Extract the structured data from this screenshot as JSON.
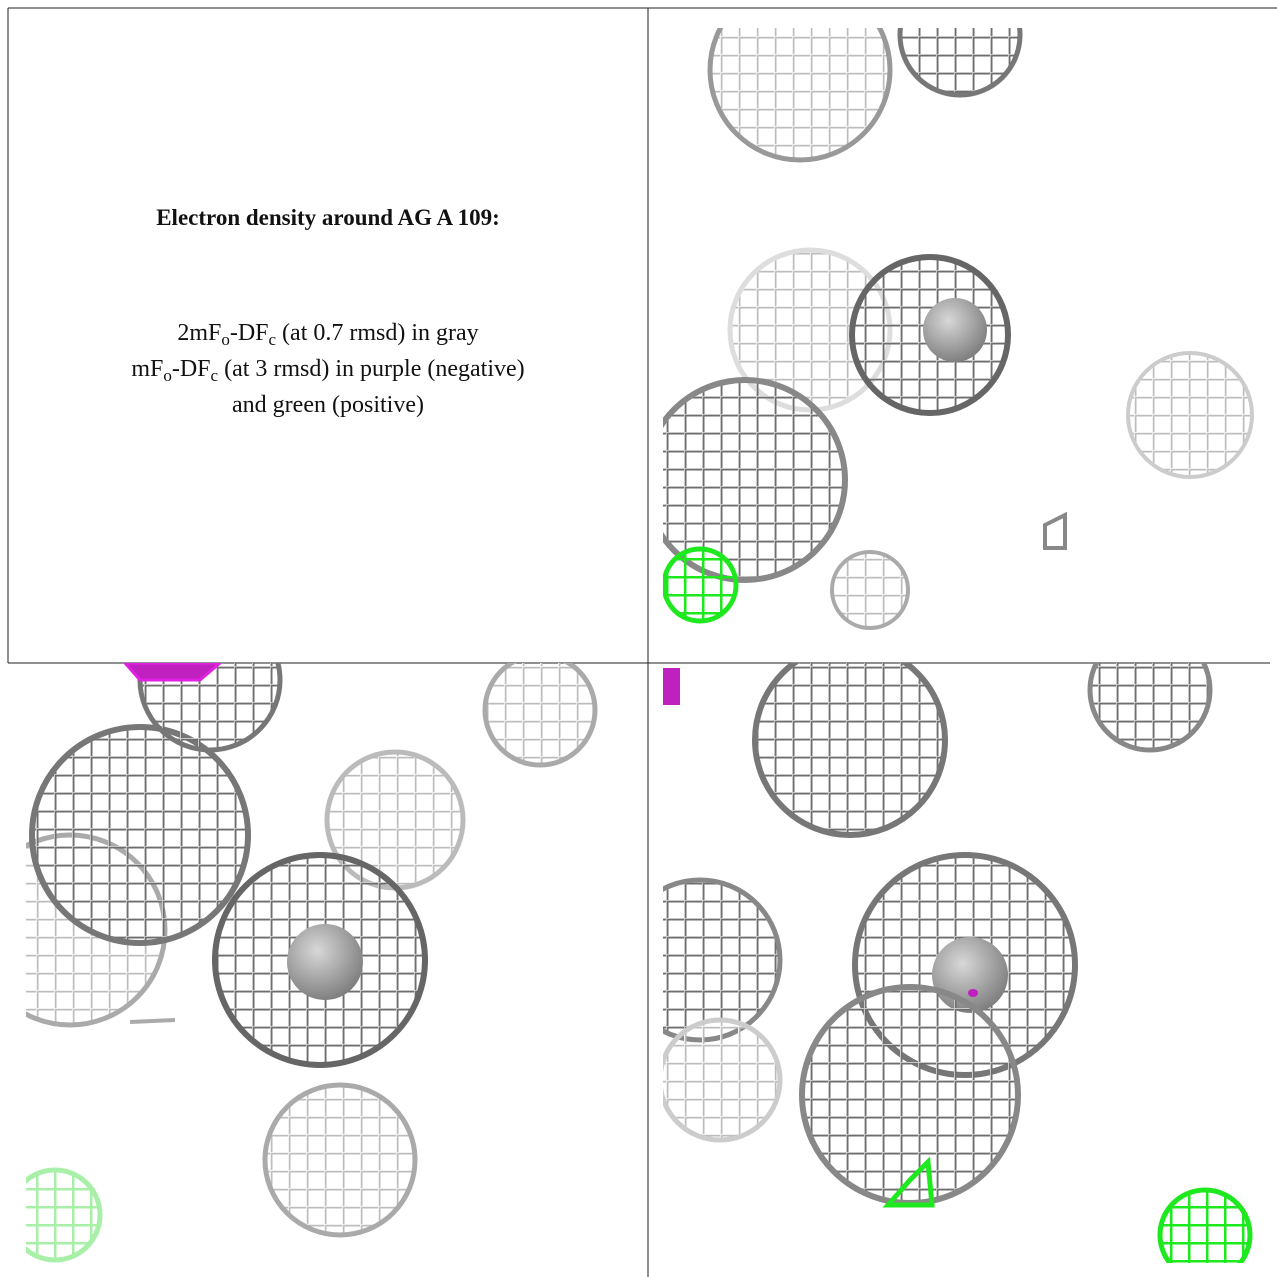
{
  "caption": {
    "title": "Electron density around AG A 109:",
    "lines": [
      [
        {
          "text": "2mF"
        },
        {
          "sub": "o"
        },
        {
          "text": "-DF"
        },
        {
          "sub": "c"
        },
        {
          "text": " (at 0.7 rmsd) in gray"
        }
      ],
      [
        {
          "text": "mF"
        },
        {
          "sub": "o"
        },
        {
          "text": "-DF"
        },
        {
          "sub": "c"
        },
        {
          "text": " (at 3 rmsd) in purple (negative)"
        }
      ],
      [
        {
          "text": "and green (positive)"
        }
      ]
    ]
  }
}
